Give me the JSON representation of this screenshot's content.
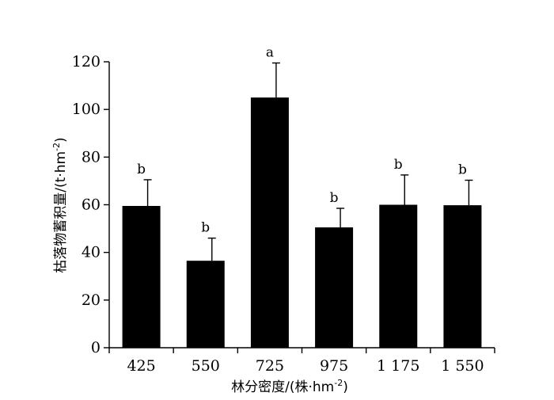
{
  "chart_data": {
    "type": "bar",
    "categories": [
      "425",
      "550",
      "725",
      "975",
      "1 175",
      "1 550"
    ],
    "values": [
      59.5,
      36.5,
      105,
      50.5,
      60,
      59.8
    ],
    "errors": [
      11,
      9.5,
      14.5,
      8,
      12.5,
      10.5
    ],
    "significance": [
      "b",
      "b",
      "a",
      "b",
      "b",
      "b"
    ],
    "xlabel": {
      "main": "林分密度/(株·hm",
      "sup": "-2",
      "close": ")"
    },
    "ylabel": {
      "main": "枯落物蓄积量/(t·hm",
      "sup": "-2",
      "close": ")"
    },
    "ylim": [
      0,
      120
    ],
    "yticks": [
      0,
      20,
      40,
      60,
      80,
      100,
      120
    ],
    "grid": false,
    "colors": {
      "bar": "#000000",
      "axis": "#000000"
    }
  }
}
